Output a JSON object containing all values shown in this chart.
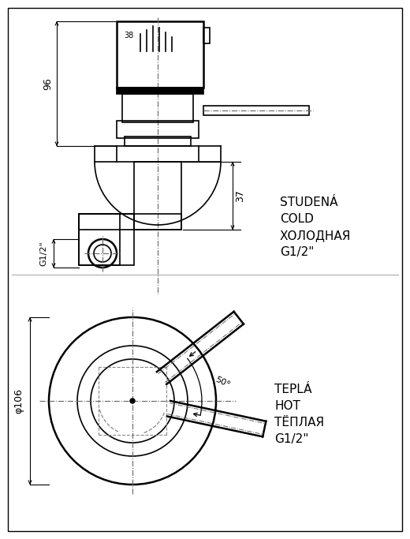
{
  "bg_color": "#ffffff",
  "line_color": "#000000",
  "label_cold": "STUDENÁ\nCOLD\nХОЛОДНАЯ\nG1/2\"",
  "label_hot": "TEPLÁ\nHOT\nТЁПЛАЯ\nG1/2\"",
  "dim_96": "96",
  "dim_37": "37",
  "dim_38": "38",
  "dim_g12_side": "G1/2\"",
  "dim_106": "φ106",
  "dim_50": "50°"
}
